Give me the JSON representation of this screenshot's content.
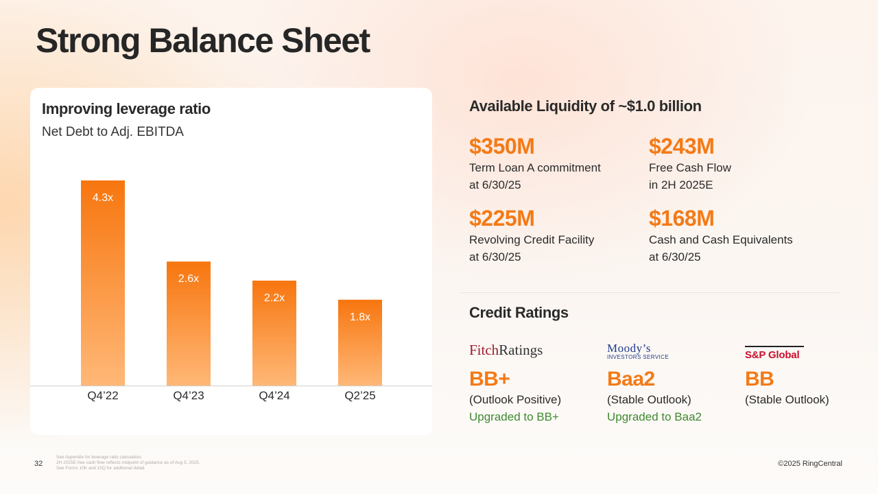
{
  "page": {
    "title": "Strong Balance Sheet",
    "page_number": "32",
    "footnotes": [
      "See Appendix for leverage ratio calculation.",
      "2H 2025E free cash flow reflects midpoint of guidance as of Aug 5, 2025.",
      "See Forms 10K and 10Q for additional detail."
    ],
    "copyright": "©2025 RingCentral"
  },
  "chart_card": {
    "title": "Improving leverage ratio",
    "subtitle": "Net Debt to Adj. EBITDA"
  },
  "chart_data": {
    "type": "bar",
    "title": "Improving leverage ratio",
    "subtitle": "Net Debt to Adj. EBITDA",
    "categories": [
      "Q4’22",
      "Q4’23",
      "Q4’24",
      "Q2’25"
    ],
    "values": [
      4.3,
      2.6,
      2.2,
      1.8
    ],
    "data_labels": [
      "4.3x",
      "2.6x",
      "2.2x",
      "1.8x"
    ],
    "xlabel": "",
    "ylabel": "",
    "ylim": [
      0,
      4.3
    ],
    "grid": false,
    "colors": {
      "bar_top": "#f7760f",
      "bar_bottom": "#ffb877",
      "label": "#ffffff",
      "axis": "#cfcfcf"
    }
  },
  "liquidity": {
    "title": "Available Liquidity of ~$1.0 billion",
    "items": [
      {
        "value": "$350M",
        "line1": "Term Loan A commitment",
        "line2": "at 6/30/25"
      },
      {
        "value": "$243M",
        "line1": "Free Cash Flow",
        "line2": "in 2H 2025E"
      },
      {
        "value": "$225M",
        "line1": "Revolving Credit Facility",
        "line2": "at 6/30/25"
      },
      {
        "value": "$168M",
        "line1": "Cash and Cash Equivalents",
        "line2": "at 6/30/25"
      }
    ]
  },
  "credit": {
    "title": "Credit Ratings",
    "ratings": [
      {
        "agency_a": "Fitch",
        "agency_b": "Ratings",
        "grade": "BB+",
        "outlook": "(Outlook Positive)",
        "upgrade": "Upgraded to BB+"
      },
      {
        "agency_a": "Moody’s",
        "agency_b": "INVESTORS SERVICE",
        "grade": "Baa2",
        "outlook": "(Stable Outlook)",
        "upgrade": "Upgraded to Baa2"
      },
      {
        "agency_a": "S&P Global",
        "grade": "BB",
        "outlook": "(Stable Outlook)"
      }
    ]
  },
  "colors": {
    "accent": "#f47a16",
    "upgrade_green": "#3f8a2f",
    "fitch_red": "#9c1c2c",
    "moodys_blue": "#1f3a8a",
    "sp_red": "#c8102e"
  }
}
